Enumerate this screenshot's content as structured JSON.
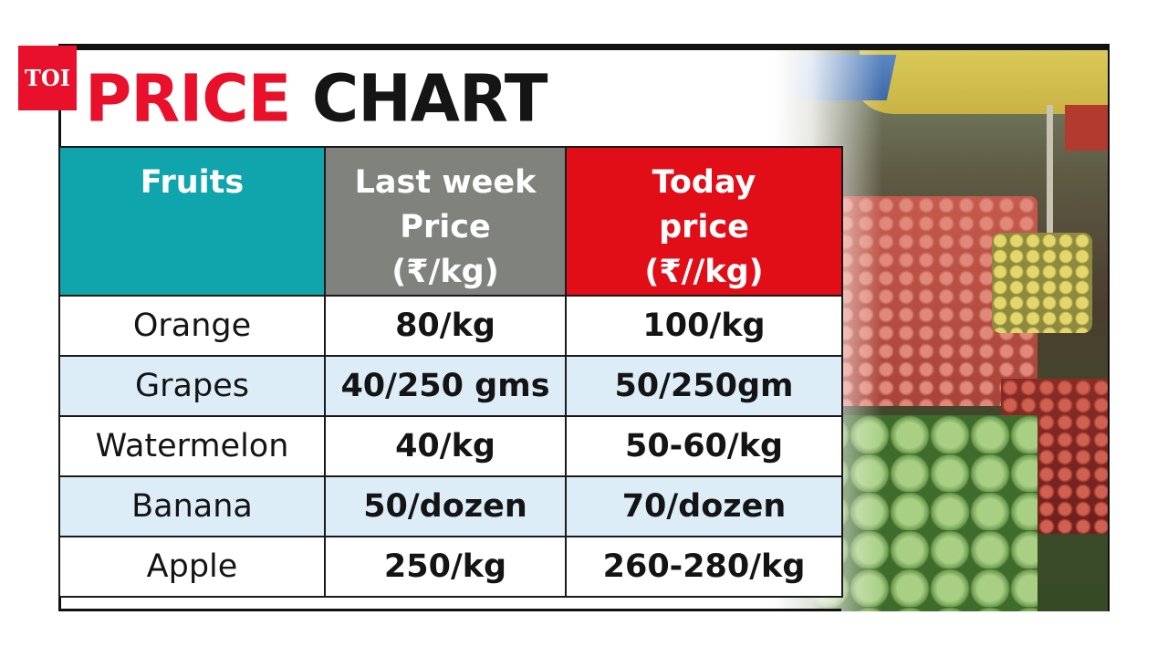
{
  "badge": {
    "text": "TOI"
  },
  "title": {
    "part1": "PRICE",
    "part2": "CHART"
  },
  "chart_data": {
    "type": "table",
    "title": "PRICE CHART",
    "columns": [
      {
        "lines": [
          "Fruits"
        ],
        "color": "#10a4ac"
      },
      {
        "lines": [
          "Last week",
          "Price",
          "(₹/kg)"
        ],
        "color": "#80827d"
      },
      {
        "lines": [
          "Today",
          "price",
          "(₹//kg)"
        ],
        "color": "#e10e18"
      }
    ],
    "rows": [
      {
        "fruit": "Orange",
        "last_week": "80/kg",
        "today": "100/kg"
      },
      {
        "fruit": "Grapes",
        "last_week": "40/250 gms",
        "today": "50/250gm"
      },
      {
        "fruit": "Watermelon",
        "last_week": "40/kg",
        "today": "50-60/kg"
      },
      {
        "fruit": "Banana",
        "last_week": "50/dozen",
        "today": "70/dozen"
      },
      {
        "fruit": "Apple",
        "last_week": "250/kg",
        "today": "260-280/kg"
      }
    ],
    "row_colors": [
      "#ffffff",
      "#dcedf8"
    ]
  }
}
